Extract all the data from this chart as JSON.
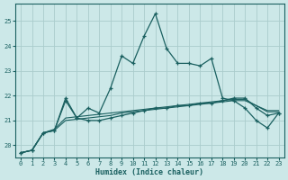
{
  "xlabel": "Humidex (Indice chaleur)",
  "bg_color": "#cce8e8",
  "grid_color": "#aacccc",
  "line_color": "#1a6060",
  "xlim": [
    -0.5,
    23.5
  ],
  "ylim": [
    19.5,
    25.7
  ],
  "yticks": [
    20,
    21,
    22,
    23,
    24,
    25
  ],
  "xticks": [
    0,
    1,
    2,
    3,
    4,
    5,
    6,
    7,
    8,
    9,
    10,
    11,
    12,
    13,
    14,
    15,
    16,
    17,
    18,
    19,
    20,
    21,
    22,
    23
  ],
  "series1_x": [
    0,
    1,
    2,
    3,
    4,
    5,
    6,
    7,
    8,
    9,
    10,
    11,
    12,
    13,
    14,
    15,
    16,
    17,
    18,
    19,
    20,
    21,
    22,
    23
  ],
  "series1_y": [
    19.7,
    19.8,
    20.5,
    20.6,
    21.8,
    21.1,
    21.5,
    21.3,
    22.3,
    23.6,
    23.3,
    24.4,
    25.3,
    23.9,
    23.3,
    23.3,
    23.2,
    23.5,
    21.9,
    21.8,
    21.5,
    21.0,
    20.7,
    21.3
  ],
  "series2_x": [
    0,
    1,
    2,
    3,
    4,
    5,
    6,
    7,
    8,
    9,
    10,
    11,
    12,
    13,
    14,
    15,
    16,
    17,
    18,
    19,
    20,
    21,
    22,
    23
  ],
  "series2_y": [
    19.7,
    19.8,
    20.5,
    20.6,
    21.9,
    21.1,
    21.0,
    21.0,
    21.1,
    21.2,
    21.3,
    21.4,
    21.5,
    21.5,
    21.6,
    21.6,
    21.7,
    21.7,
    21.8,
    21.9,
    21.9,
    21.5,
    21.2,
    21.3
  ],
  "series3_x": [
    0,
    1,
    2,
    3,
    4,
    5,
    6,
    7,
    8,
    9,
    10,
    11,
    12,
    13,
    14,
    15,
    16,
    17,
    18,
    19,
    20,
    21,
    22,
    23
  ],
  "series3_y": [
    19.7,
    19.8,
    20.5,
    20.6,
    21.0,
    21.05,
    21.1,
    21.15,
    21.2,
    21.3,
    21.35,
    21.4,
    21.45,
    21.5,
    21.55,
    21.6,
    21.65,
    21.7,
    21.75,
    21.8,
    21.8,
    21.6,
    21.4,
    21.4
  ],
  "series4_x": [
    0,
    1,
    2,
    3,
    4,
    5,
    6,
    7,
    8,
    9,
    10,
    11,
    12,
    13,
    14,
    15,
    16,
    17,
    18,
    19,
    20,
    21,
    22,
    23
  ],
  "series4_y": [
    19.7,
    19.8,
    20.5,
    20.65,
    21.1,
    21.15,
    21.2,
    21.25,
    21.3,
    21.35,
    21.4,
    21.45,
    21.5,
    21.55,
    21.6,
    21.65,
    21.7,
    21.75,
    21.8,
    21.85,
    21.85,
    21.6,
    21.35,
    21.35
  ]
}
